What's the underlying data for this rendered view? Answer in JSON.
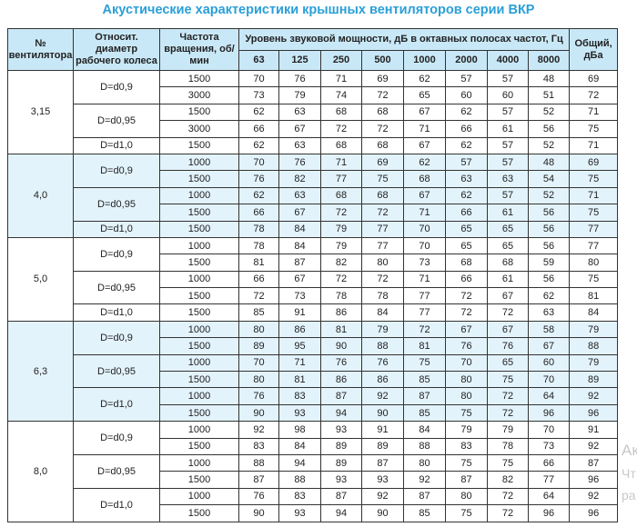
{
  "title": "Акустические характеристики крышных вентиляторов серии ВКР",
  "colors": {
    "title": "#2a9fd8",
    "header_bg": "#c9e8f7",
    "band_bg": "#e3f3fc"
  },
  "headers": {
    "fan_no": "№ вентилятора",
    "diameter": "Относит. диаметр рабочего колеса",
    "rpm": "Частота вращения, об/мин",
    "sound_level": "Уровень звуковой мощности, дБ в октавных полосах частот, Гц",
    "bands": [
      "63",
      "125",
      "250",
      "500",
      "1000",
      "2000",
      "4000",
      "8000"
    ],
    "total": "Общий, дБа"
  },
  "groups": [
    {
      "fan": "3,15",
      "shaded": false,
      "subs": [
        {
          "d": "D=d0,9",
          "rows": [
            [
              "1500",
              "70",
              "76",
              "71",
              "69",
              "62",
              "57",
              "57",
              "48",
              "69"
            ],
            [
              "3000",
              "73",
              "79",
              "74",
              "72",
              "65",
              "60",
              "60",
              "51",
              "72"
            ]
          ]
        },
        {
          "d": "D=d0,95",
          "rows": [
            [
              "1500",
              "62",
              "63",
              "68",
              "68",
              "67",
              "62",
              "57",
              "52",
              "71"
            ],
            [
              "3000",
              "66",
              "67",
              "72",
              "72",
              "71",
              "66",
              "61",
              "56",
              "75"
            ]
          ]
        },
        {
          "d": "D=d1,0",
          "rows": [
            [
              "1500",
              "62",
              "63",
              "68",
              "68",
              "67",
              "62",
              "57",
              "52",
              "71"
            ]
          ]
        }
      ]
    },
    {
      "fan": "4,0",
      "shaded": true,
      "subs": [
        {
          "d": "D=d0,9",
          "rows": [
            [
              "1000",
              "70",
              "76",
              "71",
              "69",
              "62",
              "57",
              "57",
              "48",
              "69"
            ],
            [
              "1500",
              "76",
              "82",
              "77",
              "75",
              "68",
              "63",
              "63",
              "54",
              "75"
            ]
          ]
        },
        {
          "d": "D=d0,95",
          "rows": [
            [
              "1000",
              "62",
              "63",
              "68",
              "68",
              "67",
              "62",
              "57",
              "52",
              "71"
            ],
            [
              "1500",
              "66",
              "67",
              "72",
              "72",
              "71",
              "66",
              "61",
              "56",
              "75"
            ]
          ]
        },
        {
          "d": "D=d1,0",
          "rows": [
            [
              "1500",
              "78",
              "84",
              "79",
              "77",
              "70",
              "65",
              "65",
              "56",
              "77"
            ]
          ]
        }
      ]
    },
    {
      "fan": "5,0",
      "shaded": false,
      "subs": [
        {
          "d": "D=d0,9",
          "rows": [
            [
              "1000",
              "78",
              "84",
              "79",
              "77",
              "70",
              "65",
              "65",
              "56",
              "77"
            ],
            [
              "1500",
              "81",
              "87",
              "82",
              "80",
              "73",
              "68",
              "68",
              "59",
              "80"
            ]
          ]
        },
        {
          "d": "D=d0,95",
          "rows": [
            [
              "1000",
              "66",
              "67",
              "72",
              "72",
              "71",
              "66",
              "61",
              "56",
              "75"
            ],
            [
              "1500",
              "72",
              "73",
              "78",
              "78",
              "77",
              "72",
              "67",
              "62",
              "81"
            ]
          ]
        },
        {
          "d": "D=d1,0",
          "rows": [
            [
              "1500",
              "85",
              "91",
              "86",
              "84",
              "77",
              "72",
              "72",
              "63",
              "84"
            ]
          ]
        }
      ]
    },
    {
      "fan": "6,3",
      "shaded": true,
      "subs": [
        {
          "d": "D=d0,9",
          "rows": [
            [
              "1000",
              "80",
              "86",
              "81",
              "79",
              "72",
              "67",
              "67",
              "58",
              "79"
            ],
            [
              "1500",
              "89",
              "95",
              "90",
              "88",
              "81",
              "76",
              "76",
              "67",
              "88"
            ]
          ]
        },
        {
          "d": "D=d0,95",
          "rows": [
            [
              "1000",
              "70",
              "71",
              "76",
              "76",
              "75",
              "70",
              "65",
              "60",
              "79"
            ],
            [
              "1500",
              "80",
              "81",
              "86",
              "86",
              "85",
              "80",
              "75",
              "70",
              "89"
            ]
          ]
        },
        {
          "d": "D=d1,0",
          "rows": [
            [
              "1000",
              "76",
              "83",
              "87",
              "92",
              "87",
              "80",
              "72",
              "64",
              "92"
            ],
            [
              "1500",
              "90",
              "93",
              "94",
              "90",
              "85",
              "75",
              "72",
              "96",
              "96"
            ]
          ]
        }
      ]
    },
    {
      "fan": "8,0",
      "shaded": false,
      "subs": [
        {
          "d": "D=d0,9",
          "rows": [
            [
              "1000",
              "92",
              "98",
              "93",
              "91",
              "84",
              "79",
              "79",
              "70",
              "91"
            ],
            [
              "1500",
              "83",
              "84",
              "89",
              "89",
              "88",
              "83",
              "78",
              "73",
              "92"
            ]
          ]
        },
        {
          "d": "D=d0,95",
          "rows": [
            [
              "1000",
              "88",
              "94",
              "89",
              "87",
              "80",
              "75",
              "75",
              "66",
              "87"
            ],
            [
              "1500",
              "87",
              "88",
              "93",
              "93",
              "92",
              "87",
              "82",
              "77",
              "96"
            ]
          ]
        },
        {
          "d": "D=d1,0",
          "rows": [
            [
              "1000",
              "76",
              "83",
              "87",
              "92",
              "87",
              "80",
              "72",
              "64",
              "92"
            ],
            [
              "1500",
              "90",
              "93",
              "94",
              "90",
              "85",
              "75",
              "72",
              "96",
              "96"
            ]
          ]
        }
      ]
    }
  ],
  "watermark_fragments": [
    "Ак",
    "Чт",
    "ра"
  ]
}
